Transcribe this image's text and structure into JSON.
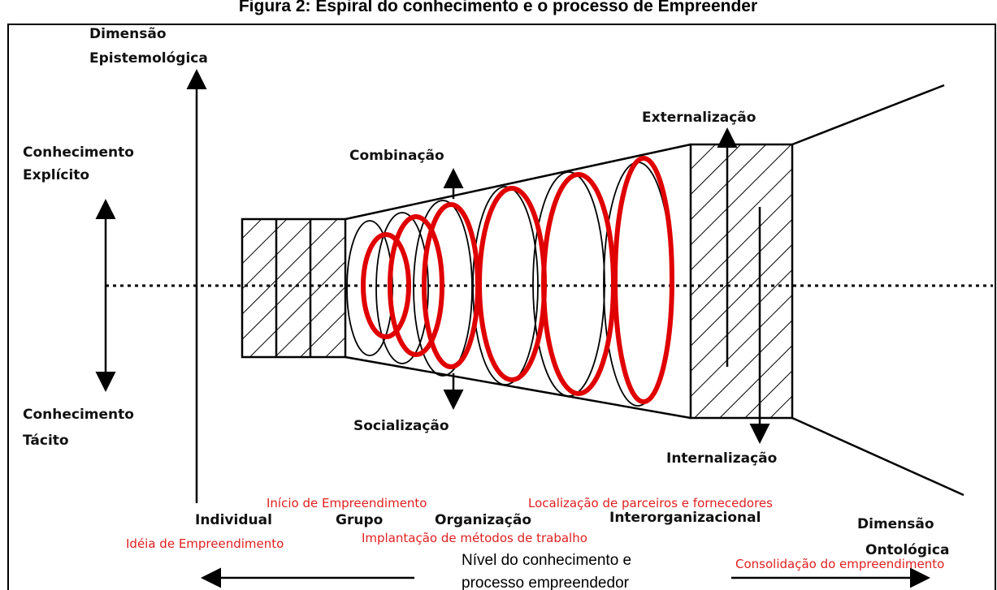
{
  "title": "Figura 2: Espiral do conhecimento e o processo de Empreender",
  "vertical_axis": {
    "label_line1": "Dimensão",
    "label_line2": "Epistemológica",
    "top_line1": "Conhecimento",
    "top_line2": "Explícito",
    "bottom_line1": "Conhecimento",
    "bottom_line2": "Tácito"
  },
  "modes": {
    "combination": "Combinação",
    "externalization": "Externalização",
    "socialization": "Socialização",
    "internalization": "Internalização"
  },
  "levels": [
    "Individual",
    "Grupo",
    "Organização",
    "Interorganizacional"
  ],
  "horizontal_axis": {
    "label_line1": "Dimensão",
    "label_line2": "Ontológica",
    "caption_line1": "Nível  do conhecimento e",
    "caption_line2": "processo empreendedor"
  },
  "stages": {
    "idea": "Idéia de Empreendimento",
    "start": "Início de Empreendimento",
    "methods": "Implantação de métodos de trabalho",
    "partners": "Localização de parceiros e fornecedores",
    "consolidation": "Consolidação do empreendimento"
  }
}
